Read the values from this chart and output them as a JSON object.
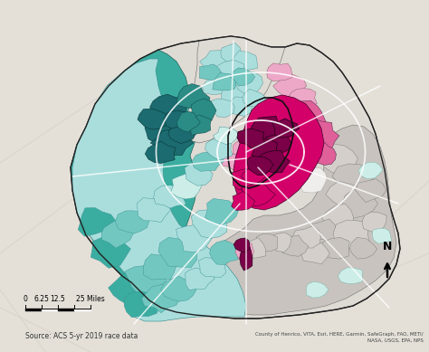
{
  "source_text": "Source: ACS 5-yr 2019 race data",
  "attribution": "County of Henrico, VITA, Esri, HERE, Garmin, SafeGraph, FAO, METI/\nNASA, USGS, EPA, NPS",
  "bg_color": "#e4e0d8",
  "outside_map_color": "#dedad2",
  "colors": {
    "dark_teal": "#1b6b70",
    "mid_teal": "#2a8c85",
    "teal": "#3aada0",
    "light_teal": "#72c8c0",
    "very_light_teal": "#aadedd",
    "pale_teal": "#cdeee8",
    "dark_pink": "#7a0048",
    "hot_pink": "#d4006a",
    "medium_pink": "#e0609a",
    "light_pink": "#eda8c8",
    "very_light_pink": "#f5d0e4",
    "gray": "#bcb7b2",
    "mid_gray": "#c8c3be",
    "light_gray": "#d4cfca",
    "pale_gray": "#dedad4",
    "white_patch": "#f0eeec",
    "road": "#ffffff",
    "border": "#222222",
    "thin_border": "#666666"
  },
  "figsize": [
    4.74,
    3.89
  ],
  "dpi": 100
}
